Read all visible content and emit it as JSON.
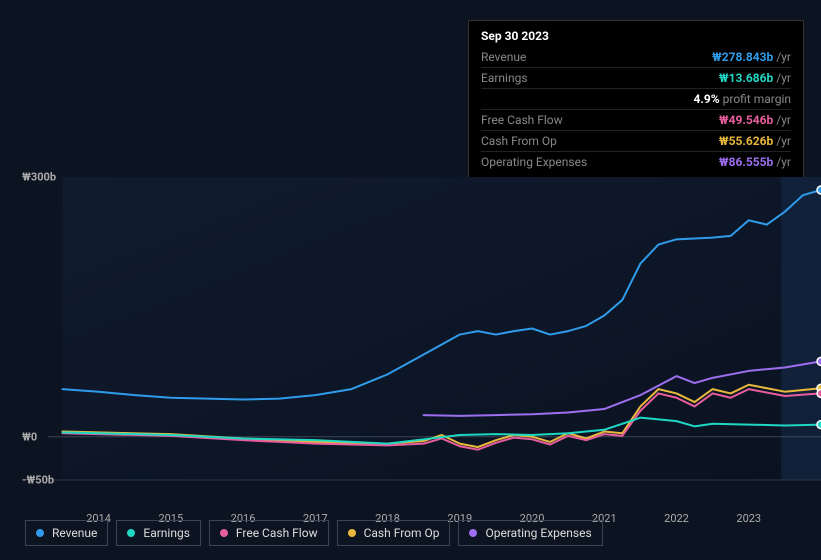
{
  "tooltip": {
    "date": "Sep 30 2023",
    "rows": [
      {
        "label": "Revenue",
        "value": "₩278.843b",
        "unit": "/yr",
        "color": "#2f9ceb"
      },
      {
        "label": "Earnings",
        "value": "₩13.686b",
        "unit": "/yr",
        "color": "#1fd8c4"
      },
      {
        "label": "",
        "pct": "4.9%",
        "pm_label": "profit margin"
      },
      {
        "label": "Free Cash Flow",
        "value": "₩49.546b",
        "unit": "/yr",
        "color": "#e85d9e"
      },
      {
        "label": "Cash From Op",
        "value": "₩55.626b",
        "unit": "/yr",
        "color": "#e8b93c"
      },
      {
        "label": "Operating Expenses",
        "value": "₩86.555b",
        "unit": "/yr",
        "color": "#9d6ef0"
      }
    ]
  },
  "chart": {
    "type": "line",
    "background_color": "#0d1421",
    "plot_bg_gradient": [
      "#101b2e",
      "#0a1220"
    ],
    "future_band_color": "#132440",
    "grid_color": "#2a3548",
    "baseline_color": "#3a4557",
    "line_width": 2,
    "ylim": [
      -50,
      300
    ],
    "y_ticks": [
      {
        "v": -50,
        "label": "-₩50b"
      },
      {
        "v": 0,
        "label": "₩0"
      },
      {
        "v": 300,
        "label": "₩300b"
      }
    ],
    "xlim": [
      2013.3,
      2024.0
    ],
    "x_ticks": [
      2014,
      2015,
      2016,
      2017,
      2018,
      2019,
      2020,
      2021,
      2022,
      2023
    ],
    "future_start": 2023.45,
    "data_start": 2013.5,
    "series": [
      {
        "name": "Revenue",
        "color": "#2f9ceb",
        "marker_end": true,
        "points": [
          [
            2013.5,
            55
          ],
          [
            2014,
            52
          ],
          [
            2014.5,
            48
          ],
          [
            2015,
            45
          ],
          [
            2015.5,
            44
          ],
          [
            2016,
            43
          ],
          [
            2016.5,
            44
          ],
          [
            2017,
            48
          ],
          [
            2017.5,
            55
          ],
          [
            2018,
            72
          ],
          [
            2018.5,
            95
          ],
          [
            2019,
            118
          ],
          [
            2019.25,
            122
          ],
          [
            2019.5,
            118
          ],
          [
            2019.75,
            122
          ],
          [
            2020,
            125
          ],
          [
            2020.25,
            118
          ],
          [
            2020.5,
            122
          ],
          [
            2020.75,
            128
          ],
          [
            2021,
            140
          ],
          [
            2021.25,
            158
          ],
          [
            2021.5,
            200
          ],
          [
            2021.75,
            222
          ],
          [
            2022,
            228
          ],
          [
            2022.5,
            230
          ],
          [
            2022.75,
            232
          ],
          [
            2023,
            250
          ],
          [
            2023.25,
            245
          ],
          [
            2023.5,
            260
          ],
          [
            2023.75,
            279
          ],
          [
            2024,
            285
          ]
        ]
      },
      {
        "name": "Operating Expenses",
        "color": "#9d6ef0",
        "marker_end": true,
        "points": [
          [
            2018.5,
            25
          ],
          [
            2019,
            24
          ],
          [
            2019.5,
            25
          ],
          [
            2020,
            26
          ],
          [
            2020.5,
            28
          ],
          [
            2021,
            32
          ],
          [
            2021.5,
            48
          ],
          [
            2022,
            70
          ],
          [
            2022.25,
            62
          ],
          [
            2022.5,
            68
          ],
          [
            2023,
            76
          ],
          [
            2023.5,
            80
          ],
          [
            2024,
            87
          ]
        ]
      },
      {
        "name": "Cash From Op",
        "color": "#e8b93c",
        "marker_end": true,
        "points": [
          [
            2013.5,
            6
          ],
          [
            2014,
            5
          ],
          [
            2015,
            3
          ],
          [
            2016,
            -2
          ],
          [
            2016.5,
            -4
          ],
          [
            2017,
            -6
          ],
          [
            2017.5,
            -7
          ],
          [
            2018,
            -8
          ],
          [
            2018.5,
            -5
          ],
          [
            2018.75,
            2
          ],
          [
            2019,
            -8
          ],
          [
            2019.25,
            -12
          ],
          [
            2019.5,
            -4
          ],
          [
            2019.75,
            2
          ],
          [
            2020,
            0
          ],
          [
            2020.25,
            -6
          ],
          [
            2020.5,
            4
          ],
          [
            2020.75,
            -2
          ],
          [
            2021,
            6
          ],
          [
            2021.25,
            4
          ],
          [
            2021.5,
            35
          ],
          [
            2021.75,
            55
          ],
          [
            2022,
            50
          ],
          [
            2022.25,
            40
          ],
          [
            2022.5,
            55
          ],
          [
            2022.75,
            50
          ],
          [
            2023,
            60
          ],
          [
            2023.5,
            52
          ],
          [
            2024,
            56
          ]
        ]
      },
      {
        "name": "Free Cash Flow",
        "color": "#e85d9e",
        "marker_end": true,
        "points": [
          [
            2013.5,
            4
          ],
          [
            2014,
            3
          ],
          [
            2015,
            1
          ],
          [
            2016,
            -4
          ],
          [
            2016.5,
            -6
          ],
          [
            2017,
            -8
          ],
          [
            2017.5,
            -9
          ],
          [
            2018,
            -10
          ],
          [
            2018.5,
            -8
          ],
          [
            2018.75,
            -2
          ],
          [
            2019,
            -11
          ],
          [
            2019.25,
            -15
          ],
          [
            2019.5,
            -7
          ],
          [
            2019.75,
            -1
          ],
          [
            2020,
            -3
          ],
          [
            2020.25,
            -9
          ],
          [
            2020.5,
            1
          ],
          [
            2020.75,
            -4
          ],
          [
            2021,
            3
          ],
          [
            2021.25,
            1
          ],
          [
            2021.5,
            30
          ],
          [
            2021.75,
            50
          ],
          [
            2022,
            45
          ],
          [
            2022.25,
            35
          ],
          [
            2022.5,
            50
          ],
          [
            2022.75,
            45
          ],
          [
            2023,
            55
          ],
          [
            2023.5,
            47
          ],
          [
            2024,
            50
          ]
        ]
      },
      {
        "name": "Earnings",
        "color": "#1fd8c4",
        "marker_end": true,
        "points": [
          [
            2013.5,
            5
          ],
          [
            2014,
            4
          ],
          [
            2015,
            2
          ],
          [
            2016,
            -2
          ],
          [
            2017,
            -4
          ],
          [
            2017.5,
            -6
          ],
          [
            2018,
            -8
          ],
          [
            2018.5,
            -3
          ],
          [
            2019,
            2
          ],
          [
            2019.5,
            3
          ],
          [
            2020,
            2
          ],
          [
            2020.5,
            4
          ],
          [
            2021,
            8
          ],
          [
            2021.5,
            22
          ],
          [
            2022,
            18
          ],
          [
            2022.25,
            12
          ],
          [
            2022.5,
            15
          ],
          [
            2023,
            14
          ],
          [
            2023.5,
            13
          ],
          [
            2024,
            14
          ]
        ]
      }
    ]
  },
  "legend": [
    {
      "label": "Revenue",
      "color": "#2f9ceb"
    },
    {
      "label": "Earnings",
      "color": "#1fd8c4"
    },
    {
      "label": "Free Cash Flow",
      "color": "#e85d9e"
    },
    {
      "label": "Cash From Op",
      "color": "#e8b93c"
    },
    {
      "label": "Operating Expenses",
      "color": "#9d6ef0"
    }
  ]
}
